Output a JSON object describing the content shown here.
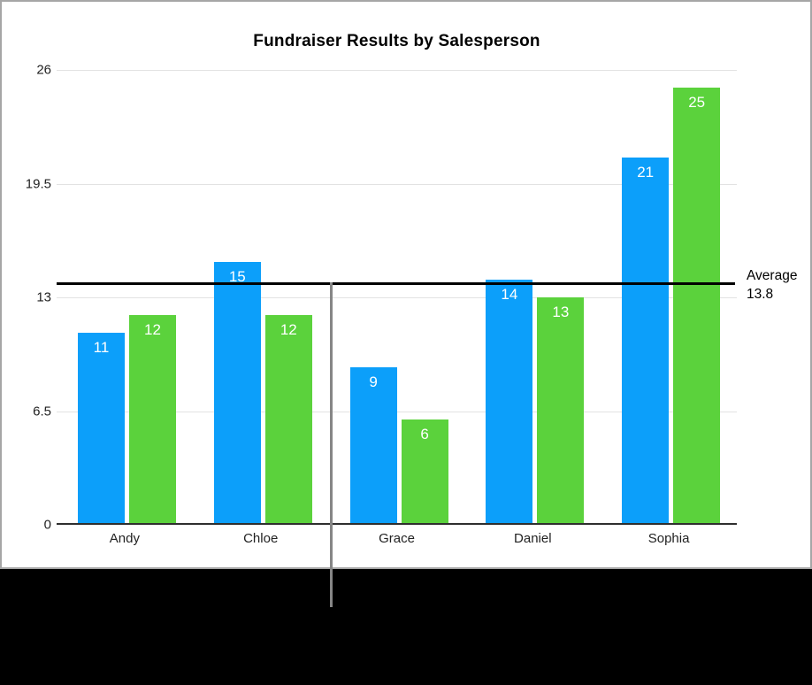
{
  "figure": {
    "title": "Fundraiser Results by Salesperson"
  },
  "chart_data": {
    "type": "bar",
    "title": "Fundraiser Results by Salesperson",
    "categories": [
      "Andy",
      "Chloe",
      "Grace",
      "Daniel",
      "Sophia"
    ],
    "series": [
      {
        "color": "#0c9ffa",
        "values": [
          11,
          15,
          9,
          14,
          21
        ]
      },
      {
        "color": "#5bd23c",
        "values": [
          12,
          12,
          6,
          13,
          25
        ]
      }
    ],
    "ylim": [
      0,
      26
    ],
    "yticks": [
      0,
      6.5,
      13,
      19.5,
      26
    ],
    "ytick_labels": [
      "0",
      "6.5",
      "13",
      "19.5",
      "26"
    ],
    "grid": true,
    "legend": "none",
    "bar_label_color": "#ffffff",
    "average_line": {
      "value": 13.8,
      "label_line1": "Average",
      "label_line2": "13.8",
      "color": "#000000"
    }
  },
  "annotations": {
    "callout_line": {
      "color": "#868686"
    }
  },
  "colors": {
    "panel_background": "#ffffff",
    "page_background": "#000000",
    "panel_border": "#a6a6a6",
    "gridline": "#e2e2e2",
    "axis_line": "#2f2f2f",
    "tick_text": "#222222"
  }
}
